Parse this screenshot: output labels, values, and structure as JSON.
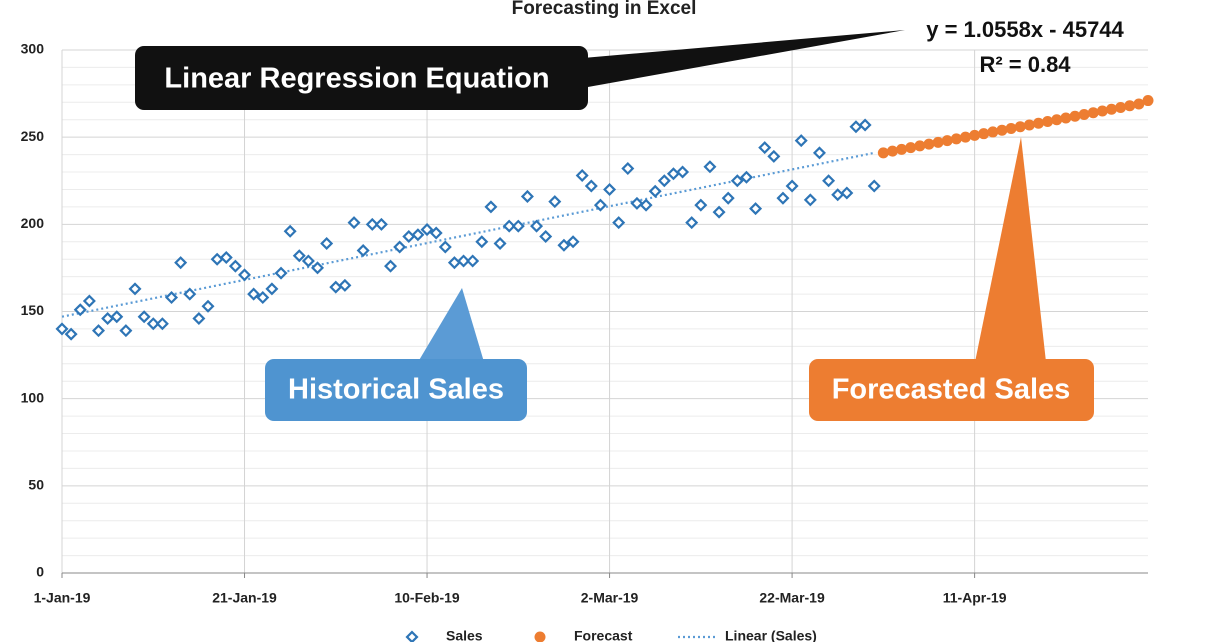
{
  "chart_data": {
    "type": "scatter",
    "title": "Forecasting in Excel",
    "xlim": [
      "2019-01-01",
      "2019-04-30"
    ],
    "xticks": [
      {
        "value": "2019-01-01",
        "label": "1-Jan-19"
      },
      {
        "value": "2019-01-21",
        "label": "21-Jan-19"
      },
      {
        "value": "2019-02-10",
        "label": "10-Feb-19"
      },
      {
        "value": "2019-03-02",
        "label": "2-Mar-19"
      },
      {
        "value": "2019-03-22",
        "label": "22-Mar-19"
      },
      {
        "value": "2019-04-11",
        "label": "11-Apr-19"
      }
    ],
    "ylim": [
      0,
      300
    ],
    "yticks": [
      0,
      50,
      100,
      150,
      200,
      250,
      300
    ],
    "grid": true,
    "minor_grid": true,
    "legend": "bottom",
    "series": [
      {
        "name": "Sales",
        "color": "#2e75b6",
        "marker": "diamond",
        "x": [
          "2019-01-01",
          "2019-01-02",
          "2019-01-03",
          "2019-01-04",
          "2019-01-05",
          "2019-01-06",
          "2019-01-07",
          "2019-01-08",
          "2019-01-09",
          "2019-01-10",
          "2019-01-11",
          "2019-01-12",
          "2019-01-13",
          "2019-01-14",
          "2019-01-15",
          "2019-01-16",
          "2019-01-17",
          "2019-01-18",
          "2019-01-19",
          "2019-01-20",
          "2019-01-21",
          "2019-01-22",
          "2019-01-23",
          "2019-01-24",
          "2019-01-25",
          "2019-01-26",
          "2019-01-27",
          "2019-01-28",
          "2019-01-29",
          "2019-01-30",
          "2019-01-31",
          "2019-02-01",
          "2019-02-02",
          "2019-02-03",
          "2019-02-04",
          "2019-02-05",
          "2019-02-06",
          "2019-02-07",
          "2019-02-08",
          "2019-02-09",
          "2019-02-10",
          "2019-02-11",
          "2019-02-12",
          "2019-02-13",
          "2019-02-14",
          "2019-02-15",
          "2019-02-16",
          "2019-02-17",
          "2019-02-18",
          "2019-02-19",
          "2019-02-20",
          "2019-02-21",
          "2019-02-22",
          "2019-02-23",
          "2019-02-24",
          "2019-02-25",
          "2019-02-26",
          "2019-02-27",
          "2019-02-28",
          "2019-03-01",
          "2019-03-02",
          "2019-03-03",
          "2019-03-04",
          "2019-03-05",
          "2019-03-06",
          "2019-03-07",
          "2019-03-08",
          "2019-03-09",
          "2019-03-10",
          "2019-03-11",
          "2019-03-12",
          "2019-03-13",
          "2019-03-14",
          "2019-03-15",
          "2019-03-16",
          "2019-03-17",
          "2019-03-18",
          "2019-03-19",
          "2019-03-20",
          "2019-03-21",
          "2019-03-22",
          "2019-03-23",
          "2019-03-24",
          "2019-03-25",
          "2019-03-26",
          "2019-03-27",
          "2019-03-28",
          "2019-03-29",
          "2019-03-30",
          "2019-03-31"
        ],
        "values": [
          140,
          137,
          151,
          156,
          139,
          146,
          147,
          139,
          163,
          147,
          143,
          143,
          158,
          178,
          160,
          146,
          153,
          180,
          181,
          176,
          171,
          160,
          158,
          163,
          172,
          196,
          182,
          179,
          175,
          189,
          164,
          165,
          201,
          185,
          200,
          200,
          176,
          187,
          193,
          194,
          197,
          195,
          187,
          178,
          179,
          179,
          190,
          210,
          189,
          199,
          199,
          216,
          199,
          193,
          213,
          188,
          190,
          228,
          222,
          211,
          220,
          201,
          232,
          212,
          211,
          219,
          225,
          229,
          230,
          201,
          211,
          233,
          207,
          215,
          225,
          227,
          209,
          244,
          239,
          215,
          222,
          248,
          214,
          241,
          225,
          217,
          218,
          256,
          257,
          222
        ]
      },
      {
        "name": "Forecast",
        "color": "#ed7d31",
        "marker": "circle",
        "x": [
          "2019-04-01",
          "2019-04-02",
          "2019-04-03",
          "2019-04-04",
          "2019-04-05",
          "2019-04-06",
          "2019-04-07",
          "2019-04-08",
          "2019-04-09",
          "2019-04-10",
          "2019-04-11",
          "2019-04-12",
          "2019-04-13",
          "2019-04-14",
          "2019-04-15",
          "2019-04-16",
          "2019-04-17",
          "2019-04-18",
          "2019-04-19",
          "2019-04-20",
          "2019-04-21",
          "2019-04-22",
          "2019-04-23",
          "2019-04-24",
          "2019-04-25",
          "2019-04-26",
          "2019-04-27",
          "2019-04-28",
          "2019-04-29",
          "2019-04-30"
        ],
        "values": [
          241,
          242,
          243,
          244,
          245,
          246,
          247,
          248,
          249,
          250,
          251,
          252,
          253,
          254,
          255,
          256,
          257,
          258,
          259,
          260,
          261,
          262,
          263,
          264,
          265,
          266,
          267,
          268,
          269,
          271
        ]
      }
    ],
    "trendline": {
      "name": "Linear (Sales)",
      "color": "#5b9bd5",
      "x": [
        "2019-01-01",
        "2019-03-31"
      ],
      "values": [
        147,
        241
      ],
      "equation": "y = 1.0558x - 45744",
      "r_squared_label": "R² = 0.84"
    },
    "annotations": [
      "Linear Regression Equation",
      "Historical Sales",
      "Forecasted Sales"
    ]
  }
}
